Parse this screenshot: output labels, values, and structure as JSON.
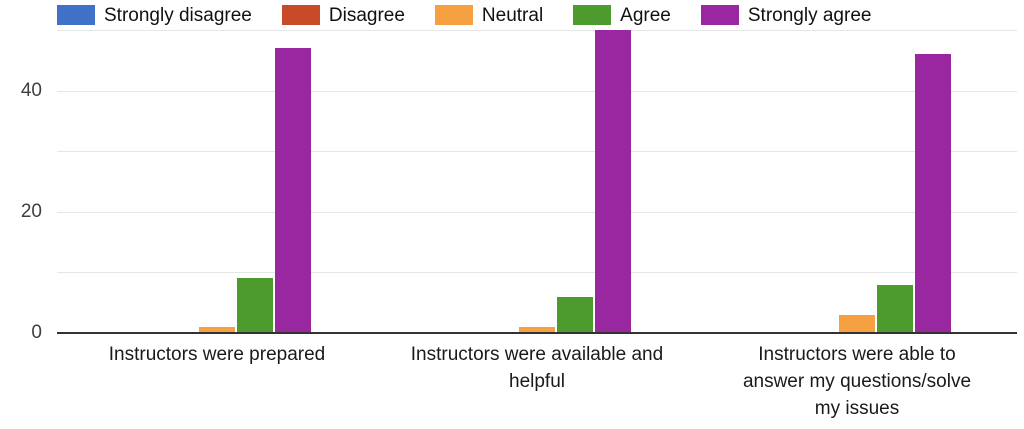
{
  "chart_data": {
    "type": "bar",
    "title": "",
    "xlabel": "",
    "ylabel": "",
    "categories": [
      "Instructors were prepared",
      "Instructors were available and\nhelpful",
      "Instructors were able to\nanswer my questions/solve\nmy issues"
    ],
    "series": [
      {
        "name": "Strongly disagree",
        "color": "#4171C6",
        "values": [
          0,
          0,
          0
        ]
      },
      {
        "name": "Disagree",
        "color": "#C94A28",
        "values": [
          0,
          0,
          0
        ]
      },
      {
        "name": "Neutral",
        "color": "#F5A142",
        "values": [
          1,
          1,
          3
        ]
      },
      {
        "name": "Agree",
        "color": "#4D9A2F",
        "values": [
          9,
          6,
          8
        ]
      },
      {
        "name": "Strongly agree",
        "color": "#9928A0",
        "values": [
          47,
          50,
          46
        ]
      }
    ],
    "ylim": [
      0,
      50
    ],
    "yticks": [
      0,
      20,
      40
    ],
    "grid_interval": 10,
    "grid_on": true,
    "legend_position": "top",
    "grid_color": "#e6e6e6",
    "axis_color": "#333333"
  }
}
